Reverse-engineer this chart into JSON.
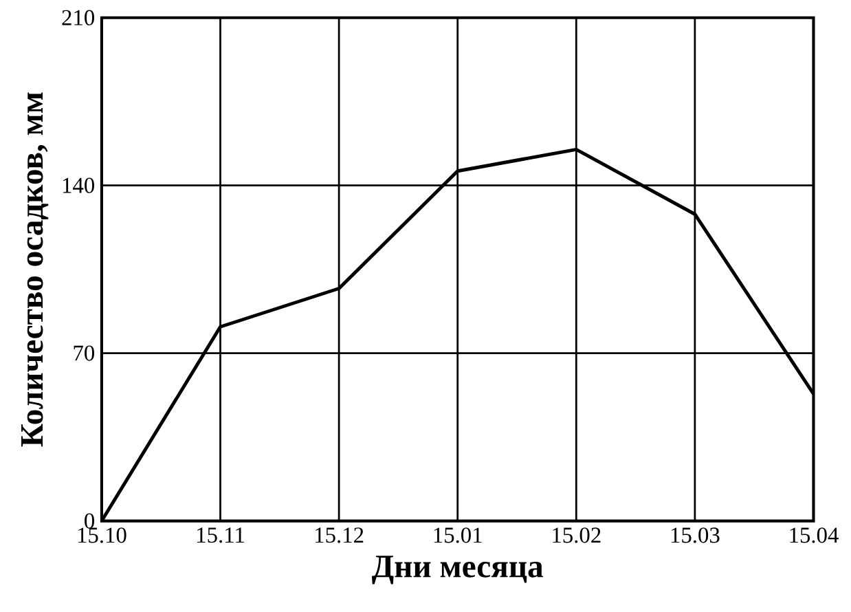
{
  "chart_data": {
    "type": "line",
    "xlabel": "Дни месяца",
    "ylabel": "Количество осадков, мм",
    "categories": [
      "15.10",
      "15.11",
      "15.12",
      "15.01",
      "15.02",
      "15.03",
      "15.04"
    ],
    "values": [
      0,
      81,
      97,
      146,
      155,
      128,
      53
    ],
    "color": "#000000",
    "ylim": [
      0,
      210
    ],
    "yticks": [
      0,
      70,
      140,
      210
    ],
    "grid": true,
    "marker": "none",
    "line_style": "solid"
  }
}
